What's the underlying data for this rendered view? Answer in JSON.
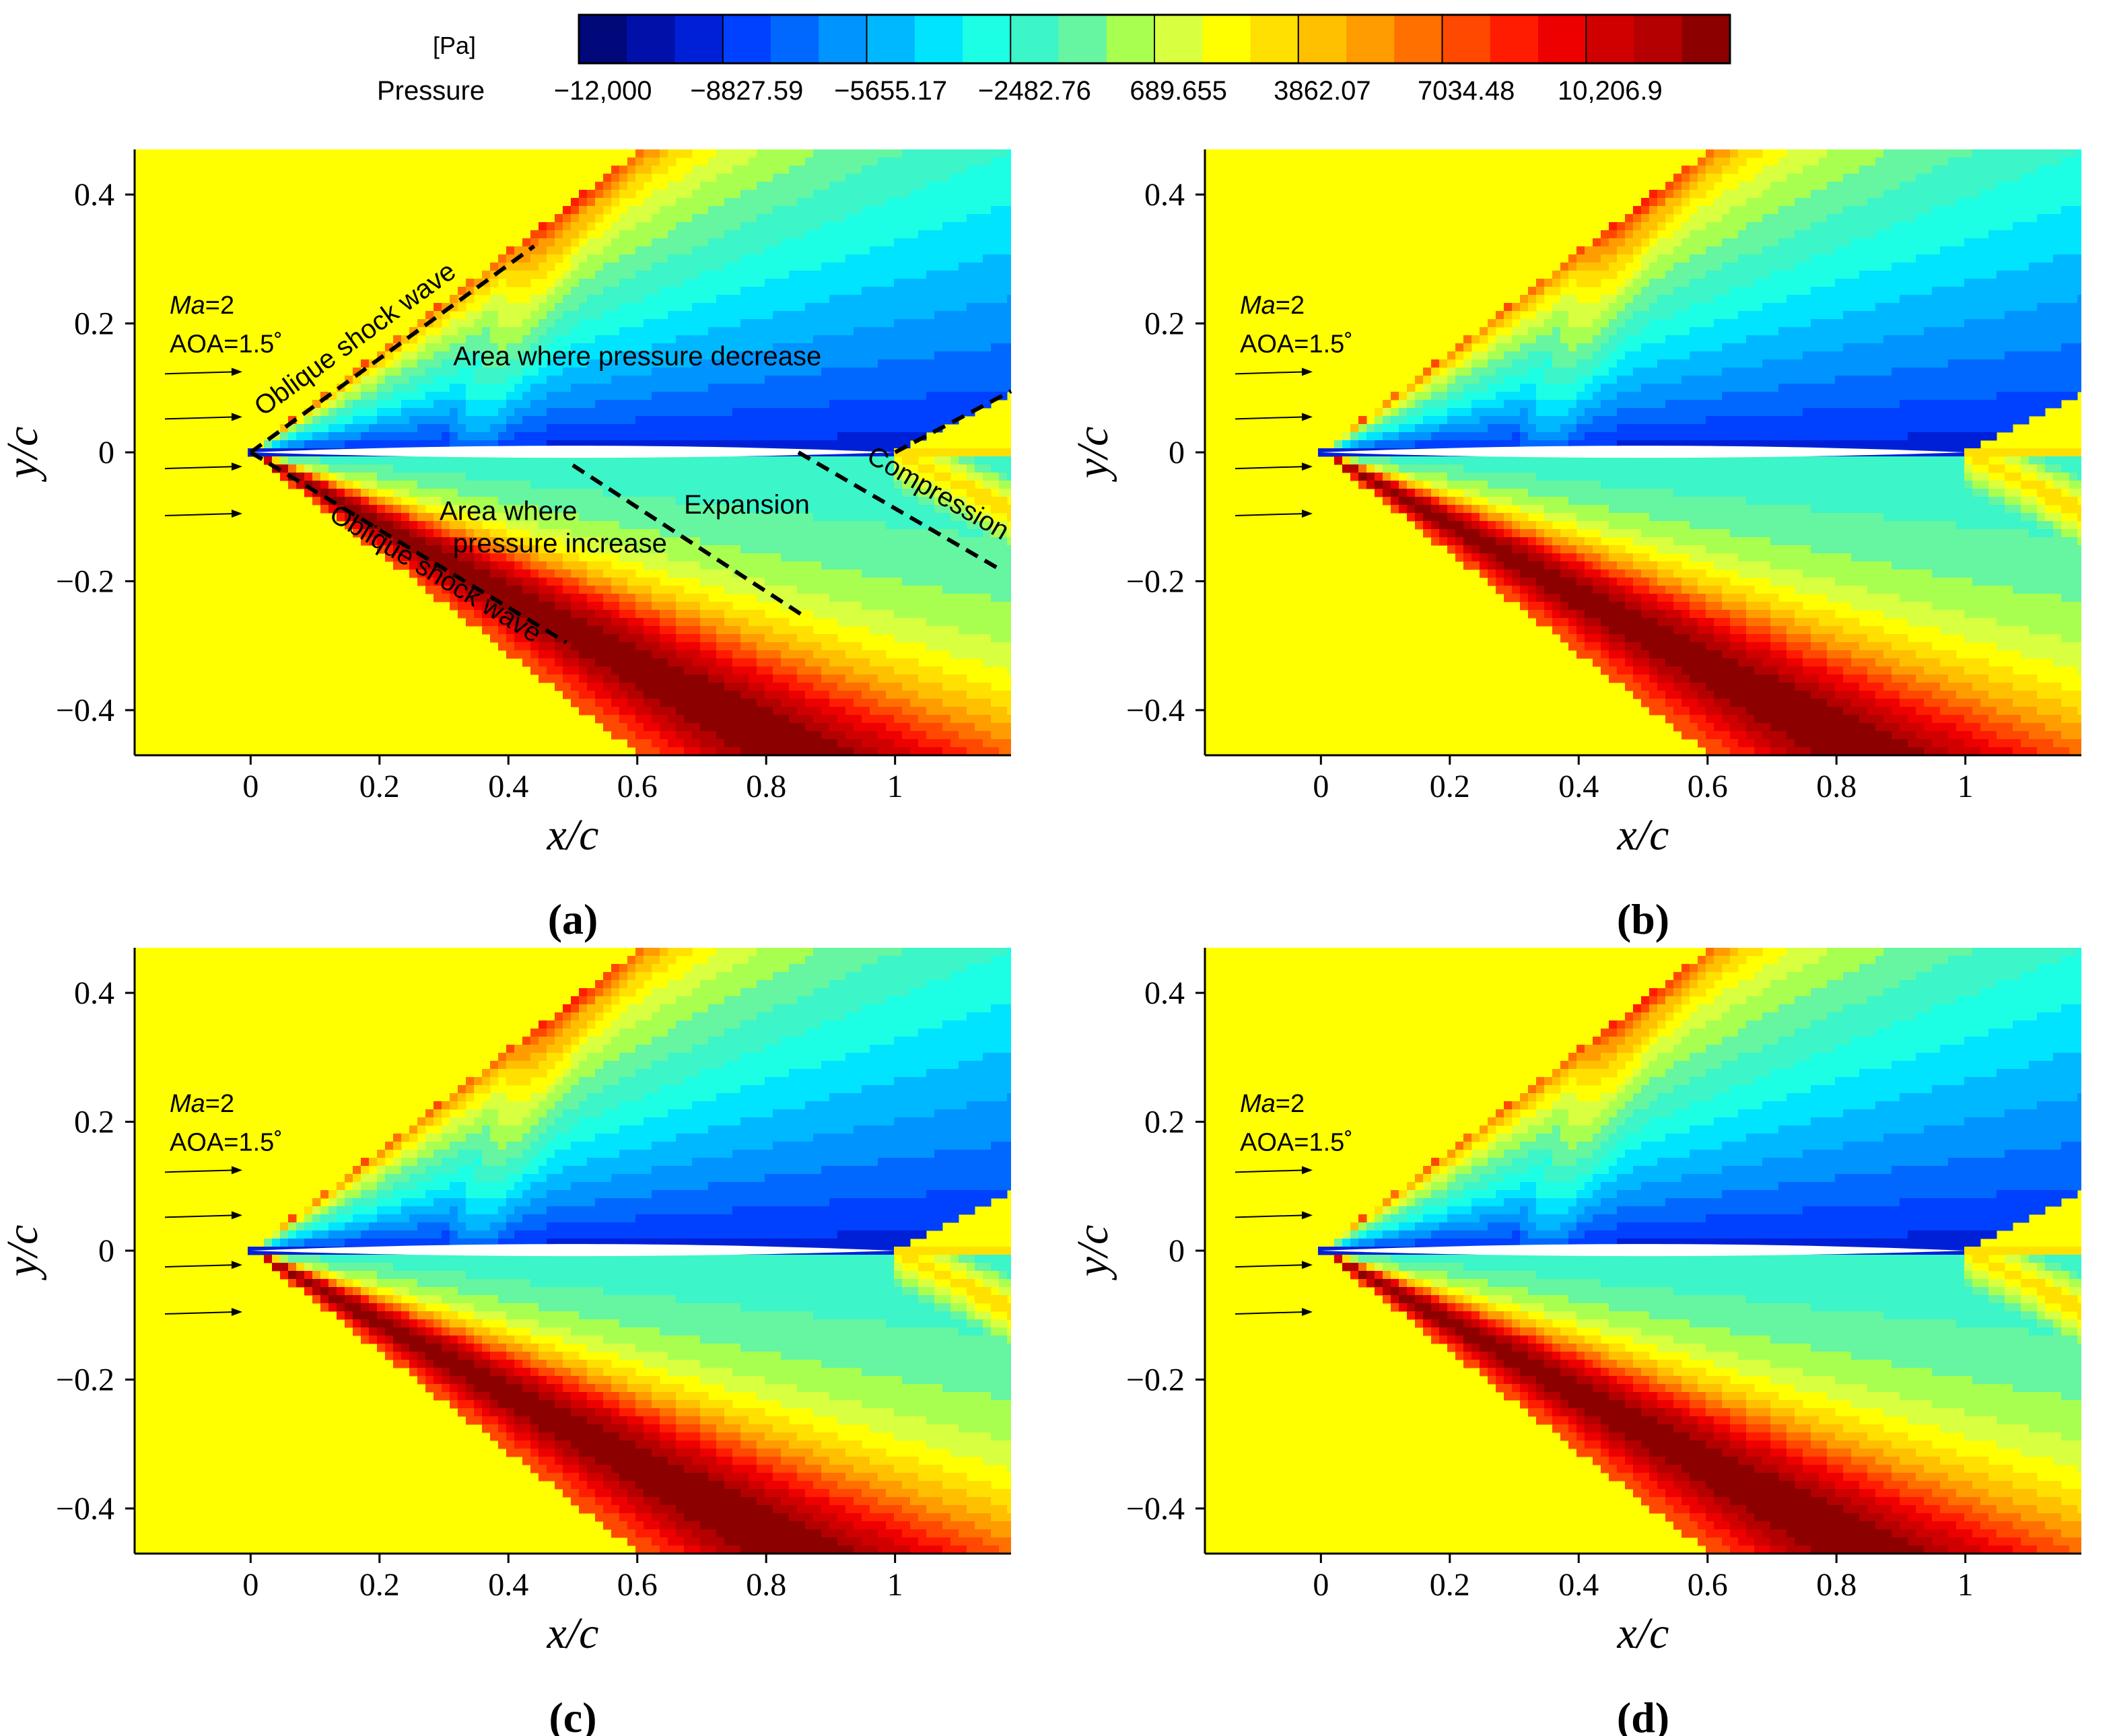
{
  "colorbar": {
    "unit": "[Pa]",
    "label": "Pressure",
    "tick_labels": [
      "−12,000",
      "−8827.59",
      "−5655.17",
      "−2482.76",
      "689.655",
      "3862.07",
      "7034.48",
      "10,206.9"
    ],
    "range": [
      -12000,
      12000
    ],
    "colors": [
      "#00087a",
      "#0010a8",
      "#0020d8",
      "#0040ff",
      "#0068ff",
      "#0094ff",
      "#00b8ff",
      "#00e4ff",
      "#1cffe4",
      "#3cf5c8",
      "#66f5a0",
      "#a8ff50",
      "#d8ff40",
      "#ffff00",
      "#ffe000",
      "#ffc000",
      "#ff9c00",
      "#ff7000",
      "#ff4800",
      "#ff1c00",
      "#ee0000",
      "#d00000",
      "#b40000",
      "#8c0000"
    ]
  },
  "chart_data": [
    {
      "type": "heatmap",
      "panel": "(a)",
      "xlabel": "x/c",
      "ylabel": "y/c",
      "xlim": [
        -0.18,
        1.18
      ],
      "ylim": [
        -0.47,
        0.47
      ],
      "x_ticks": [
        "0",
        "0.2",
        "0.4",
        "0.6",
        "0.8",
        "1"
      ],
      "y_ticks": [
        "0.4",
        "0.2",
        "0",
        "−0.2",
        "−0.4"
      ],
      "flow": {
        "mach_label": "Ma",
        "mach_value": "=2",
        "aoa": "AOA=1.5˚"
      },
      "annotations": [
        "Oblique shock wave",
        "Oblique shock wave",
        "Area where pressure decrease",
        "Area where",
        "pressure increase",
        "Expansion",
        "Compression"
      ]
    },
    {
      "type": "heatmap",
      "panel": "(b)",
      "xlabel": "x/c",
      "ylabel": "y/c",
      "xlim": [
        -0.18,
        1.18
      ],
      "ylim": [
        -0.47,
        0.47
      ],
      "x_ticks": [
        "0",
        "0.2",
        "0.4",
        "0.6",
        "0.8",
        "1"
      ],
      "y_ticks": [
        "0.4",
        "0.2",
        "0",
        "−0.2",
        "−0.4"
      ],
      "flow": {
        "mach_label": "Ma",
        "mach_value": "=2",
        "aoa": "AOA=1.5˚"
      },
      "annotations": []
    },
    {
      "type": "heatmap",
      "panel": "(c)",
      "xlabel": "x/c",
      "ylabel": "y/c",
      "xlim": [
        -0.18,
        1.18
      ],
      "ylim": [
        -0.47,
        0.47
      ],
      "x_ticks": [
        "0",
        "0.2",
        "0.4",
        "0.6",
        "0.8",
        "1"
      ],
      "y_ticks": [
        "0.4",
        "0.2",
        "0",
        "−0.2",
        "−0.4"
      ],
      "flow": {
        "mach_label": "Ma",
        "mach_value": "=2",
        "aoa": "AOA=1.5˚"
      },
      "annotations": []
    },
    {
      "type": "heatmap",
      "panel": "(d)",
      "xlabel": "x/c",
      "ylabel": "y/c",
      "xlim": [
        -0.18,
        1.18
      ],
      "ylim": [
        -0.47,
        0.47
      ],
      "x_ticks": [
        "0",
        "0.2",
        "0.4",
        "0.6",
        "0.8",
        "1"
      ],
      "y_ticks": [
        "0.4",
        "0.2",
        "0",
        "−0.2",
        "−0.4"
      ],
      "flow": {
        "mach_label": "Ma",
        "mach_value": "=2",
        "aoa": "AOA=1.5˚"
      },
      "annotations": []
    }
  ]
}
